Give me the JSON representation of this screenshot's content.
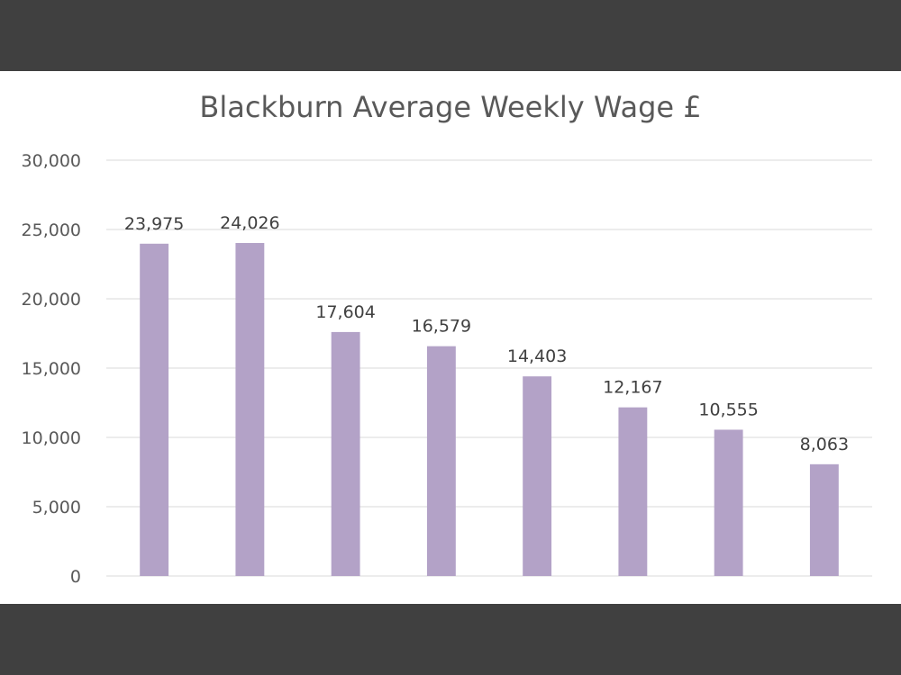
{
  "colors": {
    "frame": "#404040",
    "background": "#ffffff",
    "bar": "#b3a2c7",
    "gridline": "#d9d9d9",
    "text": "#595959"
  },
  "chart_data": {
    "type": "bar",
    "title": "Blackburn Average Weekly Wage £",
    "xlabel": "",
    "ylabel": "",
    "categories": [
      "",
      "",
      "",
      "",
      "",
      "",
      "",
      ""
    ],
    "values": [
      23975,
      24026,
      17604,
      16579,
      14403,
      12167,
      10555,
      8063
    ],
    "data_labels": [
      "23,975",
      "24,026",
      "17,604",
      "16,579",
      "14,403",
      "12,167",
      "10,555",
      "8,063"
    ],
    "y_ticks": [
      "0",
      "5,000",
      "10,000",
      "15,000",
      "20,000",
      "25,000",
      "30,000"
    ],
    "y_tick_values": [
      0,
      5000,
      10000,
      15000,
      20000,
      25000,
      30000
    ],
    "ylim": [
      0,
      30000
    ],
    "grid": true,
    "legend": "none"
  }
}
